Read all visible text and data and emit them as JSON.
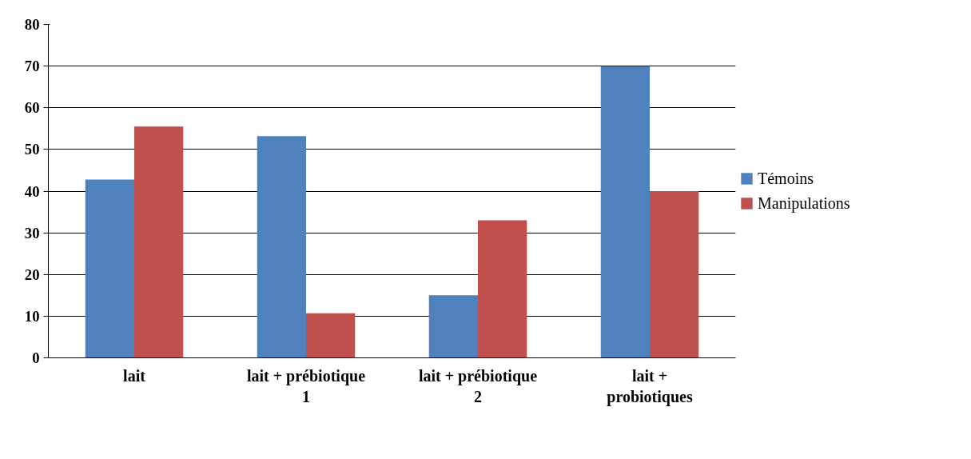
{
  "chart_data": {
    "type": "bar",
    "categories": [
      "lait",
      "lait + prébiotique 1",
      "lait + prébiotique 2",
      "lait + probiotiques"
    ],
    "series": [
      {
        "name": "Témoins",
        "color": "#4f81bd",
        "values": [
          42.8,
          53.2,
          15,
          70
        ]
      },
      {
        "name": "Manipulations",
        "color": "#c0504d",
        "values": [
          55.5,
          10.7,
          33,
          40
        ]
      }
    ],
    "ylim": [
      0,
      80
    ],
    "yticks": [
      0,
      10,
      20,
      30,
      40,
      50,
      60,
      70,
      80
    ],
    "grid": "y",
    "legend": "right"
  }
}
